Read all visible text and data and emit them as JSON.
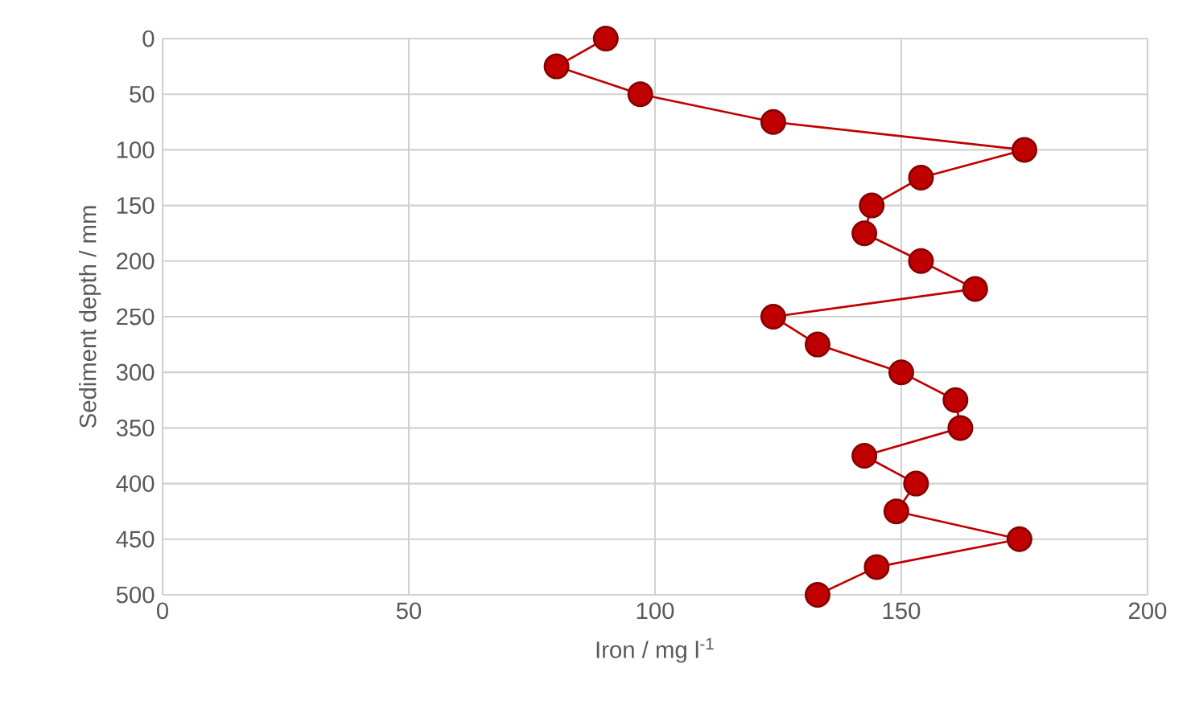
{
  "chart_data": {
    "type": "line",
    "xlabel": "Iron / mg l$^{-1}$",
    "ylabel": "Sediment depth / mm",
    "x": [
      90,
      80,
      97,
      124,
      175,
      154,
      144,
      142.5,
      154,
      165,
      124,
      133,
      150,
      161,
      162,
      142.5,
      153,
      149,
      174,
      145,
      133
    ],
    "values": [
      0,
      25,
      50,
      75,
      100,
      125,
      150,
      175,
      200,
      225,
      250,
      275,
      300,
      325,
      350,
      375,
      400,
      425,
      450,
      475,
      500
    ],
    "color": "#c00000",
    "xlim": [
      0,
      200
    ],
    "xticks": [
      0,
      50,
      100,
      150,
      200
    ],
    "ylim": [
      500,
      0
    ],
    "yticks": [
      0,
      50,
      100,
      150,
      200,
      250,
      300,
      350,
      400,
      450,
      500
    ],
    "grid": true,
    "marker": "circle",
    "line_style": "solid"
  }
}
